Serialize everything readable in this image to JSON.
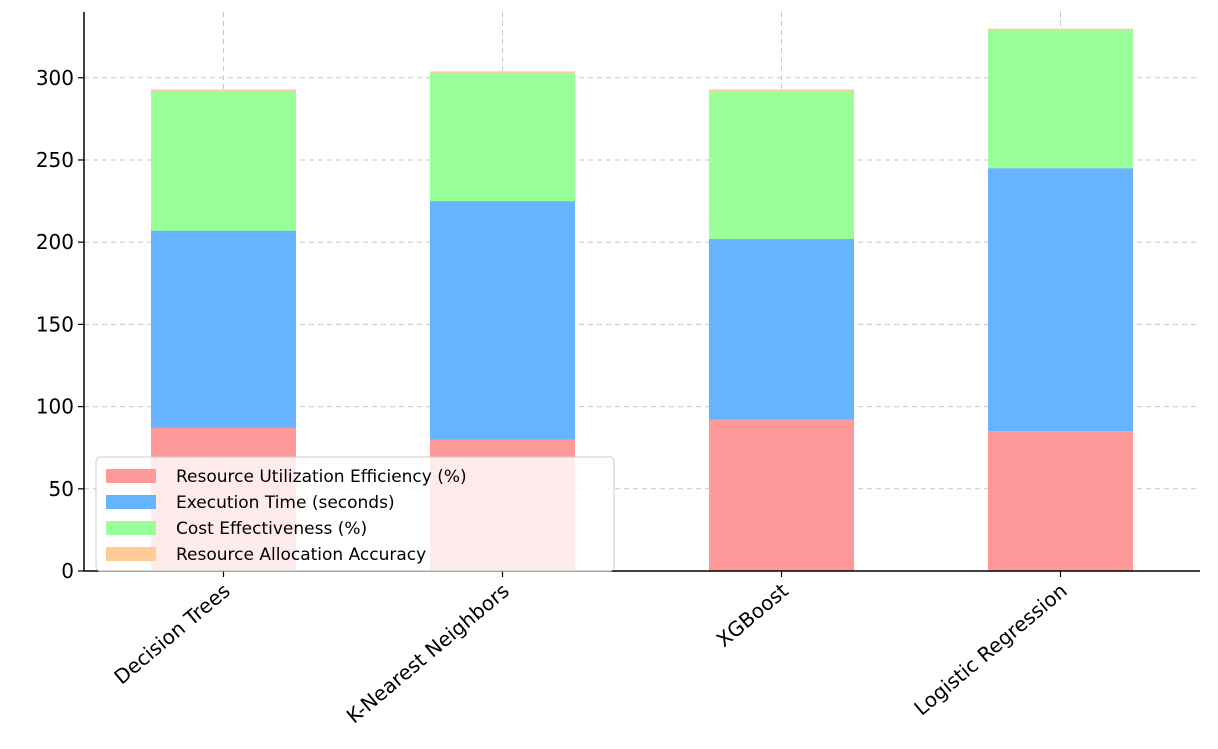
{
  "chart_data": {
    "type": "bar",
    "stacked": true,
    "title": "",
    "xlabel": "",
    "ylabel": "",
    "categories": [
      "Decision Trees",
      "K-Nearest Neighbors",
      "XGBoost",
      "Logistic Regression"
    ],
    "series": [
      {
        "name": "Resource Utilization Efficiency (%)",
        "color": "#ff9999",
        "values": [
          87,
          80,
          92,
          85
        ]
      },
      {
        "name": "Execution Time (seconds)",
        "color": "#66b3ff",
        "values": [
          120,
          145,
          110,
          160
        ]
      },
      {
        "name": "Cost Effectiveness (%)",
        "color": "#99ff99",
        "values": [
          85,
          78,
          90,
          84
        ]
      },
      {
        "name": "Resource Allocation Accuracy",
        "color": "#ffcc99",
        "values": [
          0.9,
          0.88,
          0.93,
          0.91
        ]
      }
    ],
    "ylim": [
      0,
      340
    ],
    "yticks": [
      0,
      50,
      100,
      150,
      200,
      250,
      300
    ],
    "grid": true,
    "legend_position": "lower-left"
  }
}
